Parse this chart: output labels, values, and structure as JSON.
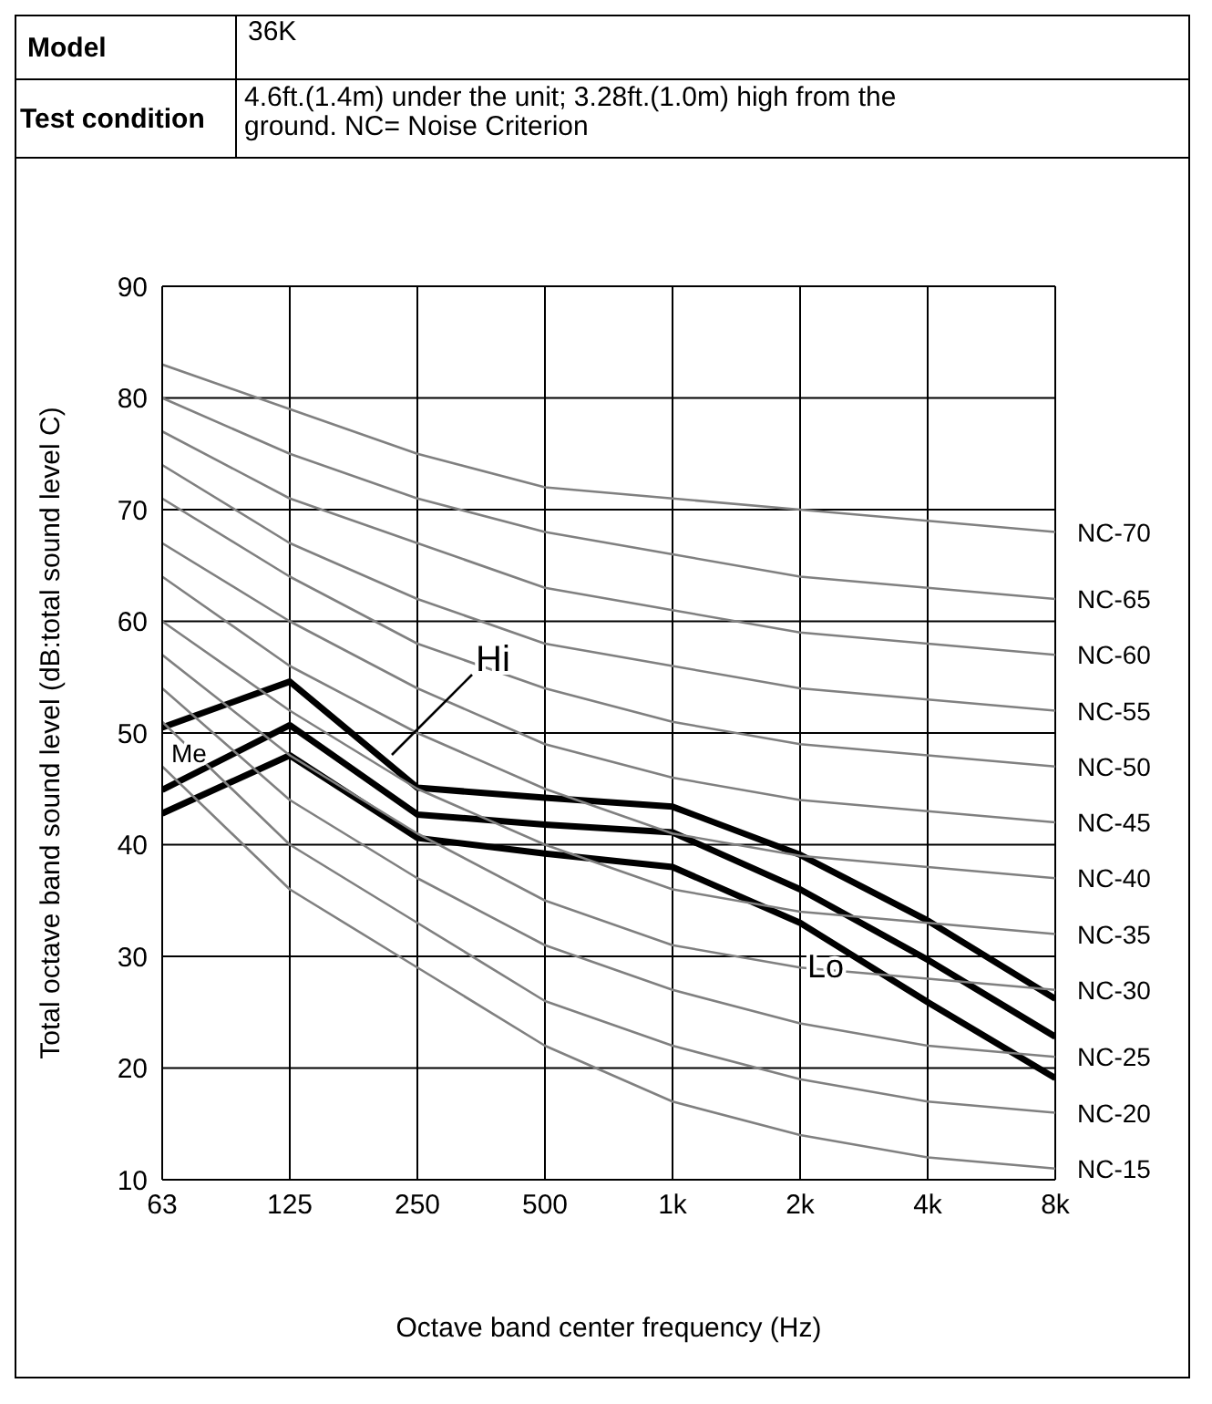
{
  "chart_data": {
    "type": "line",
    "xlabel": "Octave band center frequency (Hz)",
    "ylabel": "Total octave band sound level (dB:total sound level C)",
    "annotations": [
      "Model",
      "36K",
      "Test condition",
      "4.6ft.(1.4m) under the unit; 3.28ft.(1.0m) high from the ground. NC= Noise Criterion"
    ],
    "categories": [
      "63",
      "125",
      "250",
      "500",
      "1k",
      "2k",
      "4k",
      "8k"
    ],
    "ylim": [
      10,
      90
    ],
    "yticks": [
      10,
      20,
      30,
      40,
      50,
      60,
      70,
      80,
      90
    ],
    "grid": true,
    "legend": false,
    "marker": "none",
    "series": [
      {
        "name": "Hi",
        "color": "#000000",
        "values": [
          50.5,
          54.6,
          45.1,
          44.2,
          43.4,
          39.1,
          33.2,
          26.2
        ]
      },
      {
        "name": "Me",
        "color": "#000000",
        "values": [
          44.9,
          50.7,
          42.7,
          41.8,
          41.1,
          36.0,
          29.7,
          22.8
        ]
      },
      {
        "name": "Lo",
        "color": "#000000",
        "values": [
          42.8,
          48.0,
          40.6,
          39.2,
          38.0,
          33.0,
          25.9,
          19.1
        ]
      },
      {
        "name": "NC-70",
        "color": "#808080",
        "values": [
          83,
          79,
          75,
          72,
          71,
          70,
          69,
          68
        ]
      },
      {
        "name": "NC-65",
        "color": "#808080",
        "values": [
          80,
          75,
          71,
          68,
          66,
          64,
          63,
          62
        ]
      },
      {
        "name": "NC-60",
        "color": "#808080",
        "values": [
          77,
          71,
          67,
          63,
          61,
          59,
          58,
          57
        ]
      },
      {
        "name": "NC-55",
        "color": "#808080",
        "values": [
          74,
          67,
          62,
          58,
          56,
          54,
          53,
          52
        ]
      },
      {
        "name": "NC-50",
        "color": "#808080",
        "values": [
          71,
          64,
          58,
          54,
          51,
          49,
          48,
          47
        ]
      },
      {
        "name": "NC-45",
        "color": "#808080",
        "values": [
          67,
          60,
          54,
          49,
          46,
          44,
          43,
          42
        ]
      },
      {
        "name": "NC-40",
        "color": "#808080",
        "values": [
          64,
          56,
          50,
          45,
          41,
          39,
          38,
          37
        ]
      },
      {
        "name": "NC-35",
        "color": "#808080",
        "values": [
          60,
          52,
          45,
          40,
          36,
          34,
          33,
          32
        ]
      },
      {
        "name": "NC-30",
        "color": "#808080",
        "values": [
          57,
          48,
          41,
          35,
          31,
          29,
          28,
          27
        ]
      },
      {
        "name": "NC-25",
        "color": "#808080",
        "values": [
          54,
          44,
          37,
          31,
          27,
          24,
          22,
          21
        ]
      },
      {
        "name": "NC-20",
        "color": "#808080",
        "values": [
          51,
          40,
          33,
          26,
          22,
          19,
          17,
          16
        ]
      },
      {
        "name": "NC-15",
        "color": "#808080",
        "values": [
          47,
          36,
          29,
          22,
          17,
          14,
          12,
          11
        ]
      }
    ]
  }
}
